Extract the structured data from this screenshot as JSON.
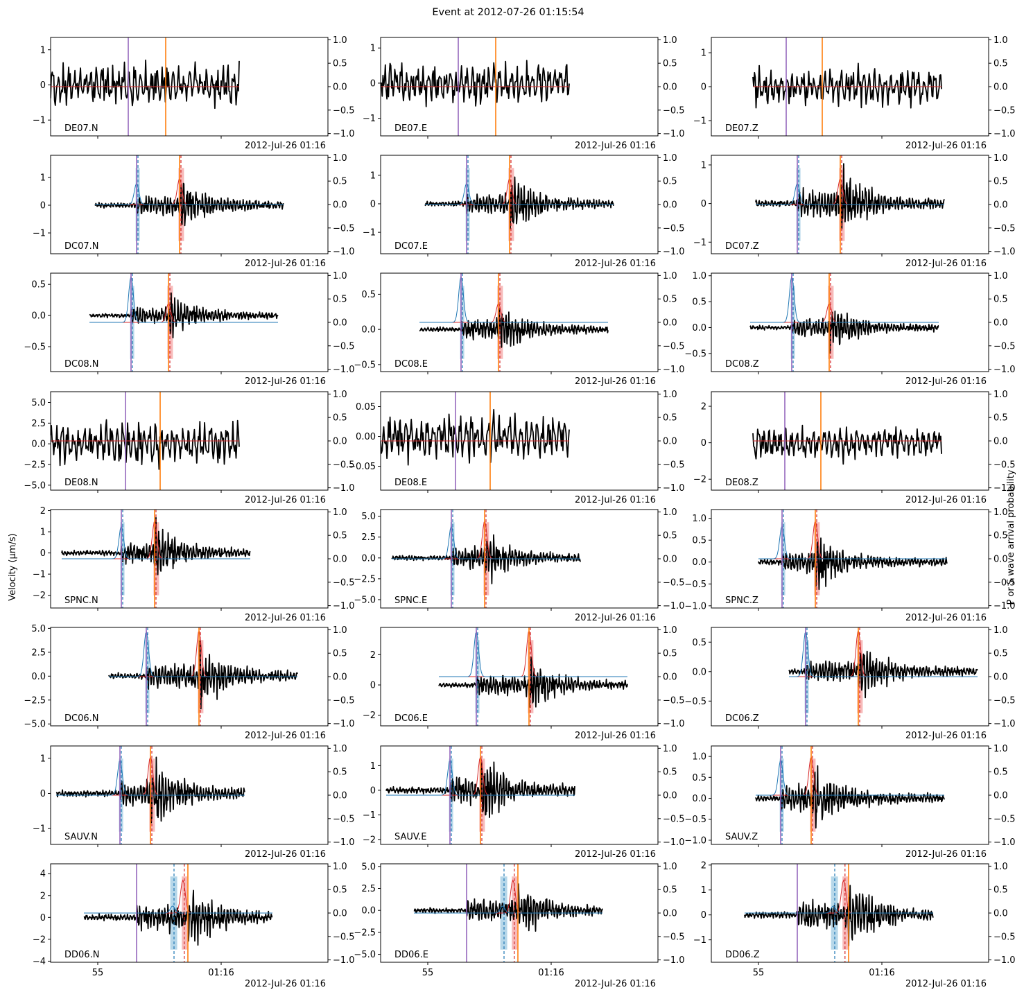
{
  "title": "Event at 2012-07-26 01:15:54",
  "left_axis_label": "Velocity ($\\mu$m/s)",
  "right_axis_label": "P or S wave arrival probability",
  "date_label": "2012-Jul-26 01:16",
  "colors": {
    "trace": "#000000",
    "p_prob": "#1f77b4",
    "s_prob": "#d62728",
    "p_pick": "#9467bd",
    "s_pick": "#ff7f0e",
    "p_band": "#9ecae1",
    "s_band": "#f4a3a3"
  },
  "chart_data": {
    "type": "line",
    "layout": "8 rows x 3 columns of waveform panels, twin y-axes",
    "right_axis": {
      "ylim": [
        -1.05,
        1.05
      ],
      "ticks": [
        -1.0,
        -0.5,
        0.0,
        0.5,
        1.0
      ]
    },
    "bottom_x_ticks": [
      "55",
      "01:16"
    ],
    "rows": [
      {
        "station": "DE07",
        "picked": false,
        "t0": 0.0,
        "t1": 0.68,
        "p_pick": 0.28,
        "s_pick": 0.415,
        "panels": [
          {
            "label": "DE07.N",
            "ylim": [
              -1.45,
              1.35
            ],
            "yticks": [
              -1,
              0,
              1
            ],
            "amp": 1.0
          },
          {
            "label": "DE07.E",
            "ylim": [
              -1.5,
              1.3
            ],
            "yticks": [
              -1,
              0,
              1
            ],
            "amp": 1.0
          },
          {
            "label": "DE07.Z",
            "ylim": [
              -1.45,
              1.45
            ],
            "yticks": [
              -1,
              0,
              1
            ],
            "amp": 0.9,
            "t0": 0.15,
            "t1": 0.83,
            "p_pick": 0.27,
            "s_pick": 0.4
          }
        ]
      },
      {
        "station": "DC07",
        "picked": true,
        "t0": 0.16,
        "t1": 0.84,
        "p_pick": 0.31,
        "s_pick": 0.465,
        "p_prob": 0.45,
        "s_prob": 0.55,
        "panels": [
          {
            "label": "DC07.N",
            "ylim": [
              -1.75,
              1.8
            ],
            "yticks": [
              -1,
              0,
              1
            ],
            "amp": 1.0
          },
          {
            "label": "DC07.E",
            "ylim": [
              -1.75,
              1.7
            ],
            "yticks": [
              -1,
              0,
              1
            ],
            "amp": 1.0
          },
          {
            "label": "DC07.Z",
            "ylim": [
              -1.3,
              1.25
            ],
            "yticks": [
              -1,
              0,
              1
            ],
            "amp": 0.9
          }
        ]
      },
      {
        "station": "DC08",
        "picked": true,
        "t0": 0.14,
        "t1": 0.82,
        "p_pick": 0.29,
        "s_pick": 0.425,
        "p_prob": 0.98,
        "s_prob": 0.4,
        "panels": [
          {
            "label": "DC08.N",
            "ylim": [
              -0.9,
              0.68
            ],
            "yticks": [
              -0.5,
              0.0,
              0.5
            ],
            "amp": 0.35
          },
          {
            "label": "DC08.E",
            "ylim": [
              -0.6,
              0.8
            ],
            "yticks": [
              -0.5,
              0.0,
              0.5
            ],
            "amp": 0.35
          },
          {
            "label": "DC08.Z",
            "ylim": [
              -0.85,
              1.05
            ],
            "yticks": [
              -0.5,
              0.0,
              0.5,
              1.0
            ],
            "amp": 0.45
          }
        ]
      },
      {
        "station": "DE08",
        "picked": false,
        "t0": 0.0,
        "t1": 0.68,
        "p_pick": 0.27,
        "s_pick": 0.395,
        "panels": [
          {
            "label": "DE08.N",
            "ylim": [
              -5.6,
              6.3
            ],
            "yticks": [
              -5.0,
              -2.5,
              0.0,
              2.5,
              5.0
            ],
            "amp": 4.5
          },
          {
            "label": "DE08.E",
            "ylim": [
              -0.09,
              0.075
            ],
            "yticks": [
              -0.05,
              0.0,
              0.05
            ],
            "amp": 0.065
          },
          {
            "label": "DE08.Z",
            "ylim": [
              -2.6,
              2.8
            ],
            "yticks": [
              -2,
              0,
              2
            ],
            "amp": 1.5,
            "t0": 0.15,
            "t1": 0.83,
            "p_pick": 0.265,
            "s_pick": 0.395
          }
        ]
      },
      {
        "station": "SPNC",
        "picked": true,
        "t0": 0.04,
        "t1": 0.72,
        "p_pick": 0.255,
        "s_pick": 0.375,
        "p_prob": 0.7,
        "s_prob": 0.8,
        "panels": [
          {
            "label": "SPNC.N",
            "ylim": [
              -2.6,
              2.05
            ],
            "yticks": [
              -2,
              -1,
              0,
              1,
              2
            ],
            "amp": 1.3
          },
          {
            "label": "SPNC.E",
            "ylim": [
              -6.0,
              5.8
            ],
            "yticks": [
              -5.0,
              -2.5,
              0.0,
              2.5,
              5.0
            ],
            "amp": 3.2
          },
          {
            "label": "SPNC.Z",
            "ylim": [
              -1.05,
              1.2
            ],
            "yticks": [
              -1.0,
              -0.5,
              0.0,
              0.5,
              1.0
            ],
            "amp": 0.65,
            "t0": 0.17,
            "t1": 0.85
          }
        ]
      },
      {
        "station": "DC06",
        "picked": true,
        "t0": 0.21,
        "t1": 0.89,
        "p_pick": 0.345,
        "s_pick": 0.535,
        "p_prob": 0.96,
        "s_prob": 0.98,
        "panels": [
          {
            "label": "DC06.N",
            "ylim": [
              -5.2,
              5.1
            ],
            "yticks": [
              -5.0,
              -2.5,
              0.0,
              2.5,
              5.0
            ],
            "amp": 3.3
          },
          {
            "label": "DC06.E",
            "ylim": [
              -2.7,
              3.8
            ],
            "yticks": [
              -2,
              0,
              2
            ],
            "amp": 1.7
          },
          {
            "label": "DC06.Z",
            "ylim": [
              -0.92,
              0.75
            ],
            "yticks": [
              -0.5,
              0.0,
              0.5
            ],
            "amp": 0.5,
            "t0": 0.28,
            "t1": 0.96,
            "p_pick": 0.34,
            "s_pick": 0.53
          }
        ]
      },
      {
        "station": "SAUV",
        "picked": true,
        "t0": 0.02,
        "t1": 0.7,
        "p_pick": 0.25,
        "s_pick": 0.36,
        "p_prob": 0.75,
        "s_prob": 0.82,
        "panels": [
          {
            "label": "SAUV.N",
            "ylim": [
              -1.45,
              1.35
            ],
            "yticks": [
              -1,
              0,
              1
            ],
            "amp": 1.0
          },
          {
            "label": "SAUV.E",
            "ylim": [
              -2.2,
              1.8
            ],
            "yticks": [
              -2,
              -1,
              0,
              1
            ],
            "amp": 1.4
          },
          {
            "label": "SAUV.Z",
            "ylim": [
              -1.1,
              1.25
            ],
            "yticks": [
              -1.0,
              -0.5,
              0.0,
              0.5,
              1.0
            ],
            "amp": 0.8,
            "t0": 0.16,
            "t1": 0.84
          }
        ]
      },
      {
        "station": "DD06",
        "picked": true,
        "t0": 0.12,
        "t1": 0.8,
        "p_pick": 0.31,
        "s_pick": 0.495,
        "p_band": 0.44,
        "s_band": 0.477,
        "p_prob": 0.15,
        "s_prob": 0.7,
        "panels": [
          {
            "label": "DD06.N",
            "ylim": [
              -4.1,
              4.9
            ],
            "yticks": [
              -4,
              -2,
              0,
              2,
              4
            ],
            "amp": 3.0
          },
          {
            "label": "DD06.E",
            "ylim": [
              -5.9,
              5.3
            ],
            "yticks": [
              -5.0,
              -2.5,
              0.0,
              2.5,
              5.0
            ],
            "amp": 3.2
          },
          {
            "label": "DD06.Z",
            "ylim": [
              -1.9,
              2.05
            ],
            "yticks": [
              -1,
              0,
              1,
              2
            ],
            "amp": 1.4
          }
        ]
      }
    ]
  }
}
